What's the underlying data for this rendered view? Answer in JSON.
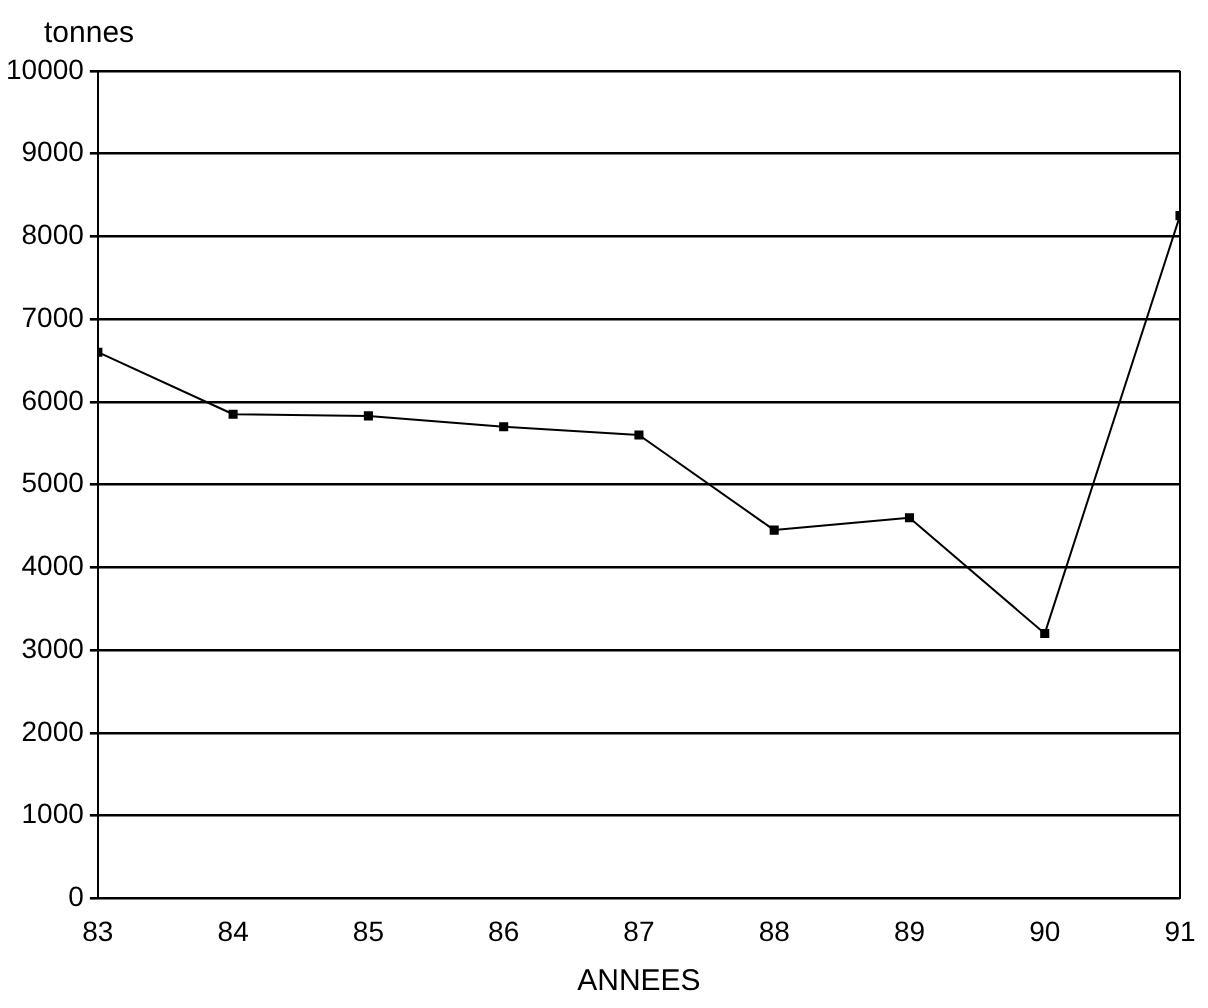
{
  "chart_data": {
    "type": "line",
    "ylabel": "tonnes",
    "xlabel": "ANNEES",
    "x": [
      83,
      84,
      85,
      86,
      87,
      88,
      89,
      90,
      91
    ],
    "series": [
      {
        "color": "#000000",
        "values": [
          6600,
          5850,
          5830,
          5700,
          5600,
          4450,
          4600,
          3200,
          8250
        ]
      }
    ],
    "xlim": [
      83,
      91
    ],
    "xticks": [
      83,
      84,
      85,
      86,
      87,
      88,
      89,
      90,
      91
    ],
    "ylim": [
      0,
      10000
    ],
    "yticks": [
      0,
      1000,
      2000,
      3000,
      4000,
      5000,
      6000,
      7000,
      8000,
      9000,
      10000
    ],
    "grid": "y",
    "marker": "square",
    "line_style": "solid",
    "legend": false
  }
}
